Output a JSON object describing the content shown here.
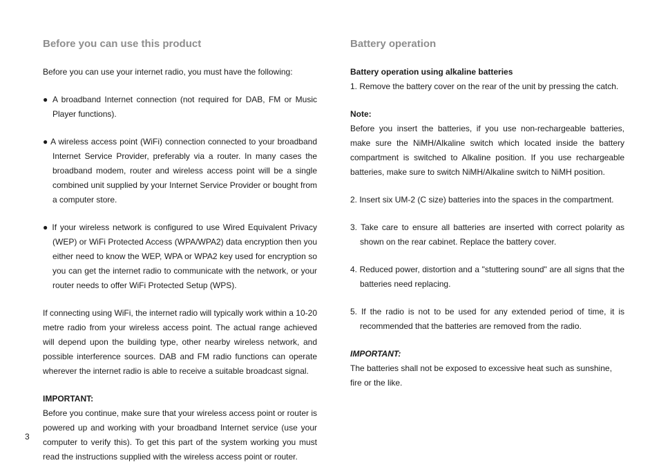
{
  "left": {
    "heading": "Before you can use this product",
    "intro": "Before you can use your internet radio, you must have the following:",
    "bullets": [
      "A broadband Internet connection (not required for DAB, FM or Music Player functions).",
      "A wireless access point (WiFi) connection connected to your broadband Internet Service Provider, preferably via a router. In many cases the broadband modem, router and wireless access point will be a single combined unit supplied by your Internet Service Provider or bought from a computer store.",
      "If your wireless network is configured to use Wired Equivalent Privacy (WEP) or WiFi Protected Access (WPA/WPA2) data encryption then you either need to know the WEP, WPA or WPA2 key used for encryption so you can get the internet radio to communicate with the network, or your router needs to offer WiFi Protected Setup (WPS)."
    ],
    "range_note": "If connecting using WiFi, the internet radio will typically work within a 10-20 metre radio from your wireless access point. The actual range achieved will depend upon the building type, other nearby wireless network, and possible interference sources. DAB and FM radio functions can operate wherever the internet radio is able to receive a suitable broadcast signal.",
    "important_label": "IMPORTANT:",
    "important_text": "Before you continue, make sure that your wireless access point or router is powered up and working with your broadband Internet service (use your computer to verify this). To get this part of the system working you must read the instructions supplied with the wireless access point or router."
  },
  "right": {
    "heading": "Battery operation",
    "sub_heading": "Battery operation using alkaline batteries",
    "step1": "1. Remove the battery cover on the rear of the unit by pressing the catch.",
    "note_label": "Note:",
    "note_text": "Before you insert the batteries, if you use non-rechargeable batteries, make sure the NiMH/Alkaline switch which located inside the battery compartment is switched to Alkaline position. If you use rechargeable batteries, make sure to switch NiMH/Alkaline switch to NiMH position.",
    "steps": [
      "2. Insert six UM-2 (C size) batteries into the spaces in the compartment.",
      "3. Take care to ensure all batteries are inserted with correct polarity as shown on the rear cabinet. Replace the battery cover.",
      "4. Reduced power, distortion and a \"stuttering sound\" are all signs that the batteries need replacing.",
      "5. If the radio is not to be used for any extended period of time, it is recommended that the batteries are removed from the radio."
    ],
    "important_label": "IMPORTANT:",
    "important_text": "The batteries shall not be exposed to excessive heat such as sunshine, fire or the like."
  },
  "page_number": "3"
}
